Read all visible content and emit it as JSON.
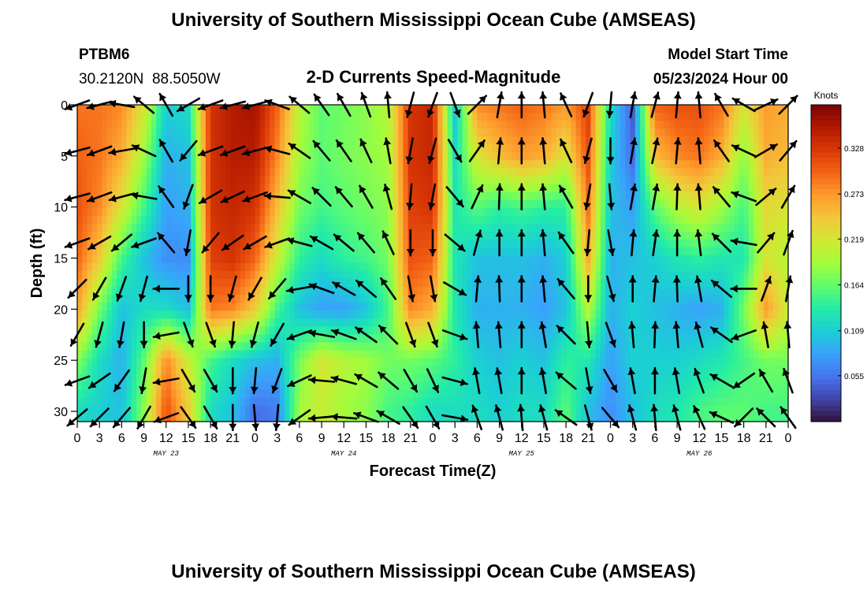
{
  "page": {
    "title": "University of Southern Mississippi Ocean Cube (AMSEAS)",
    "footer_title": "University of Southern Mississippi Ocean Cube (AMSEAS)",
    "station_name": "PTBM6",
    "station_coords": "30.2120N  88.5050W",
    "plot_title": "2-D Currents Speed-Magnitude",
    "model_start_label": "Model Start Time",
    "model_start_value": "05/23/2024 Hour 00"
  },
  "chart_data": {
    "type": "heatmap",
    "title": "2-D Currents Speed-Magnitude",
    "xlabel": "Forecast Time(Z)",
    "ylabel": "Depth (ft)",
    "x_tick_labels": [
      "0",
      "3",
      "6",
      "9",
      "12",
      "15",
      "18",
      "21",
      "0",
      "3",
      "6",
      "9",
      "12",
      "15",
      "18",
      "21",
      "0",
      "3",
      "6",
      "9",
      "12",
      "15",
      "18",
      "21",
      "0",
      "3",
      "6",
      "9",
      "12",
      "15",
      "18",
      "21",
      "0"
    ],
    "x_range_hours": [
      0,
      96
    ],
    "day_labels": [
      {
        "label": "MAY 23",
        "hour": 12
      },
      {
        "label": "MAY 24",
        "hour": 36
      },
      {
        "label": "MAY 25",
        "hour": 60
      },
      {
        "label": "MAY 26",
        "hour": 84
      }
    ],
    "y_tick_labels": [
      "0",
      "5",
      "10",
      "15",
      "20",
      "25",
      "30"
    ],
    "y_ticks": [
      0,
      5,
      10,
      15,
      20,
      25,
      30
    ],
    "y_range_ft": [
      0,
      31
    ],
    "y_inverted": true,
    "colorbar": {
      "unit": "Knots",
      "tick_labels": [
        "0.328",
        "0.273",
        "0.219",
        "0.164",
        "0.109",
        "0.055"
      ],
      "ticks": [
        0.328,
        0.273,
        0.219,
        0.164,
        0.109,
        0.055
      ],
      "range": [
        0.0,
        0.38
      ],
      "colormap": [
        "#30123b",
        "#4145ab",
        "#4675ed",
        "#39a2fc",
        "#1bcfd4",
        "#24eca6",
        "#61fc6c",
        "#a4fc3b",
        "#d1e834",
        "#f3c63a",
        "#fe9b2d",
        "#f36315",
        "#d93806",
        "#b11901",
        "#7a0402"
      ]
    },
    "speed_profiles_by_time": [
      {
        "hour": 0,
        "depth_ft": [
          0,
          5,
          10,
          15,
          20,
          25,
          30
        ],
        "knots": [
          0.29,
          0.3,
          0.31,
          0.3,
          0.27,
          0.18,
          0.12
        ]
      },
      {
        "hour": 3,
        "depth_ft": [
          0,
          5,
          10,
          15,
          20,
          25,
          30
        ],
        "knots": [
          0.29,
          0.29,
          0.28,
          0.24,
          0.17,
          0.12,
          0.11
        ]
      },
      {
        "hour": 6,
        "depth_ft": [
          0,
          5,
          10,
          15,
          20,
          25,
          30
        ],
        "knots": [
          0.28,
          0.26,
          0.22,
          0.15,
          0.1,
          0.09,
          0.1
        ]
      },
      {
        "hour": 9,
        "depth_ft": [
          0,
          5,
          10,
          15,
          20,
          25,
          30
        ],
        "knots": [
          0.22,
          0.19,
          0.15,
          0.1,
          0.12,
          0.16,
          0.18
        ]
      },
      {
        "hour": 12,
        "depth_ft": [
          0,
          5,
          10,
          15,
          20,
          25,
          30
        ],
        "knots": [
          0.11,
          0.09,
          0.08,
          0.07,
          0.12,
          0.28,
          0.31
        ]
      },
      {
        "hour": 15,
        "depth_ft": [
          0,
          5,
          10,
          15,
          20,
          25,
          30
        ],
        "knots": [
          0.12,
          0.1,
          0.09,
          0.07,
          0.1,
          0.21,
          0.24
        ]
      },
      {
        "hour": 18,
        "depth_ft": [
          0,
          5,
          10,
          15,
          20,
          25,
          30
        ],
        "knots": [
          0.33,
          0.33,
          0.33,
          0.32,
          0.29,
          0.15,
          0.12
        ]
      },
      {
        "hour": 21,
        "depth_ft": [
          0,
          5,
          10,
          15,
          20,
          25,
          30
        ],
        "knots": [
          0.35,
          0.35,
          0.34,
          0.33,
          0.28,
          0.12,
          0.1
        ]
      },
      {
        "hour": 24,
        "depth_ft": [
          0,
          5,
          10,
          15,
          20,
          25,
          30
        ],
        "knots": [
          0.36,
          0.35,
          0.33,
          0.3,
          0.24,
          0.1,
          0.05
        ]
      },
      {
        "hour": 27,
        "depth_ft": [
          0,
          5,
          10,
          15,
          20,
          25,
          30
        ],
        "knots": [
          0.3,
          0.28,
          0.25,
          0.21,
          0.15,
          0.09,
          0.06
        ]
      },
      {
        "hour": 30,
        "depth_ft": [
          0,
          5,
          10,
          15,
          20,
          25,
          30
        ],
        "knots": [
          0.2,
          0.19,
          0.17,
          0.14,
          0.1,
          0.17,
          0.19
        ]
      },
      {
        "hour": 33,
        "depth_ft": [
          0,
          5,
          10,
          15,
          20,
          25,
          30
        ],
        "knots": [
          0.16,
          0.16,
          0.15,
          0.12,
          0.08,
          0.22,
          0.21
        ]
      },
      {
        "hour": 36,
        "depth_ft": [
          0,
          5,
          10,
          15,
          20,
          25,
          30
        ],
        "knots": [
          0.17,
          0.17,
          0.16,
          0.14,
          0.08,
          0.2,
          0.19
        ]
      },
      {
        "hour": 39,
        "depth_ft": [
          0,
          5,
          10,
          15,
          20,
          25,
          30
        ],
        "knots": [
          0.18,
          0.18,
          0.17,
          0.15,
          0.1,
          0.19,
          0.18
        ]
      },
      {
        "hour": 42,
        "depth_ft": [
          0,
          5,
          10,
          15,
          20,
          25,
          30
        ],
        "knots": [
          0.2,
          0.19,
          0.18,
          0.17,
          0.15,
          0.17,
          0.15
        ]
      },
      {
        "hour": 45,
        "depth_ft": [
          0,
          5,
          10,
          15,
          20,
          25,
          30
        ],
        "knots": [
          0.33,
          0.33,
          0.32,
          0.31,
          0.28,
          0.17,
          0.14
        ]
      },
      {
        "hour": 48,
        "depth_ft": [
          0,
          5,
          10,
          15,
          20,
          25,
          30
        ],
        "knots": [
          0.34,
          0.34,
          0.33,
          0.3,
          0.26,
          0.16,
          0.12
        ]
      },
      {
        "hour": 51,
        "depth_ft": [
          0,
          5,
          10,
          15,
          20,
          25,
          30
        ],
        "knots": [
          0.1,
          0.12,
          0.13,
          0.13,
          0.13,
          0.14,
          0.12
        ]
      },
      {
        "hour": 54,
        "depth_ft": [
          0,
          5,
          10,
          15,
          20,
          25,
          30
        ],
        "knots": [
          0.28,
          0.22,
          0.16,
          0.1,
          0.09,
          0.11,
          0.12
        ]
      },
      {
        "hour": 57,
        "depth_ft": [
          0,
          5,
          10,
          15,
          20,
          25,
          30
        ],
        "knots": [
          0.29,
          0.25,
          0.14,
          0.1,
          0.09,
          0.1,
          0.11
        ]
      },
      {
        "hour": 60,
        "depth_ft": [
          0,
          5,
          10,
          15,
          20,
          25,
          30
        ],
        "knots": [
          0.3,
          0.27,
          0.15,
          0.1,
          0.09,
          0.11,
          0.12
        ]
      },
      {
        "hour": 63,
        "depth_ft": [
          0,
          5,
          10,
          15,
          20,
          25,
          30
        ],
        "knots": [
          0.29,
          0.26,
          0.14,
          0.09,
          0.08,
          0.1,
          0.12
        ]
      },
      {
        "hour": 66,
        "depth_ft": [
          0,
          5,
          10,
          15,
          20,
          25,
          30
        ],
        "knots": [
          0.27,
          0.22,
          0.14,
          0.11,
          0.1,
          0.14,
          0.16
        ]
      },
      {
        "hour": 69,
        "depth_ft": [
          0,
          5,
          10,
          15,
          20,
          25,
          30
        ],
        "knots": [
          0.32,
          0.31,
          0.29,
          0.26,
          0.2,
          0.13,
          0.1
        ]
      },
      {
        "hour": 72,
        "depth_ft": [
          0,
          5,
          10,
          15,
          20,
          25,
          30
        ],
        "knots": [
          0.12,
          0.11,
          0.1,
          0.09,
          0.09,
          0.08,
          0.07
        ]
      },
      {
        "hour": 75,
        "depth_ft": [
          0,
          5,
          10,
          15,
          20,
          25,
          30
        ],
        "knots": [
          0.04,
          0.05,
          0.08,
          0.1,
          0.11,
          0.11,
          0.1
        ]
      },
      {
        "hour": 78,
        "depth_ft": [
          0,
          5,
          10,
          15,
          20,
          25,
          30
        ],
        "knots": [
          0.3,
          0.25,
          0.16,
          0.11,
          0.1,
          0.11,
          0.12
        ]
      },
      {
        "hour": 81,
        "depth_ft": [
          0,
          5,
          10,
          15,
          20,
          25,
          30
        ],
        "knots": [
          0.31,
          0.28,
          0.2,
          0.13,
          0.09,
          0.11,
          0.13
        ]
      },
      {
        "hour": 84,
        "depth_ft": [
          0,
          5,
          10,
          15,
          20,
          25,
          30
        ],
        "knots": [
          0.31,
          0.29,
          0.22,
          0.14,
          0.08,
          0.12,
          0.15
        ]
      },
      {
        "hour": 87,
        "depth_ft": [
          0,
          5,
          10,
          15,
          20,
          25,
          30
        ],
        "knots": [
          0.29,
          0.26,
          0.19,
          0.13,
          0.09,
          0.13,
          0.16
        ]
      },
      {
        "hour": 90,
        "depth_ft": [
          0,
          5,
          10,
          15,
          20,
          25,
          30
        ],
        "knots": [
          0.22,
          0.18,
          0.15,
          0.13,
          0.17,
          0.15,
          0.16
        ]
      },
      {
        "hour": 93,
        "depth_ft": [
          0,
          5,
          10,
          15,
          20,
          25,
          30
        ],
        "knots": [
          0.27,
          0.26,
          0.23,
          0.22,
          0.27,
          0.17,
          0.15
        ]
      },
      {
        "hour": 96,
        "depth_ft": [
          0,
          5,
          10,
          15,
          20,
          25,
          30
        ],
        "knots": [
          0.26,
          0.25,
          0.22,
          0.2,
          0.21,
          0.17,
          0.15
        ]
      }
    ],
    "vector_depths_ft": [
      0,
      4.5,
      9,
      13.5,
      18,
      22.5,
      27,
      31
    ],
    "vector_columns_hours": [
      0,
      3,
      6,
      9,
      12,
      15,
      18,
      21,
      24,
      27,
      30,
      33,
      36,
      39,
      42,
      45,
      48,
      51,
      54,
      57,
      60,
      63,
      66,
      69,
      72,
      75,
      78,
      81,
      84,
      87,
      90,
      93,
      96
    ],
    "vector_direction_deg_math": [
      {
        "hour": 0,
        "deg": [
          200,
          195,
          195,
          200,
          225,
          240,
          200,
          220
        ]
      },
      {
        "hour": 3,
        "deg": [
          195,
          200,
          200,
          210,
          240,
          255,
          215,
          225
        ]
      },
      {
        "hour": 6,
        "deg": [
          170,
          190,
          195,
          220,
          250,
          260,
          235,
          230
        ]
      },
      {
        "hour": 9,
        "deg": [
          140,
          155,
          170,
          200,
          255,
          270,
          260,
          240
        ]
      },
      {
        "hour": 12,
        "deg": [
          120,
          120,
          125,
          130,
          180,
          190,
          190,
          200
        ]
      },
      {
        "hour": 15,
        "deg": [
          210,
          230,
          250,
          260,
          270,
          290,
          300,
          305
        ]
      },
      {
        "hour": 18,
        "deg": [
          200,
          200,
          210,
          230,
          270,
          290,
          300,
          300
        ]
      },
      {
        "hour": 21,
        "deg": [
          195,
          200,
          205,
          215,
          255,
          265,
          270,
          270
        ]
      },
      {
        "hour": 24,
        "deg": [
          195,
          195,
          200,
          210,
          240,
          255,
          265,
          275
        ]
      },
      {
        "hour": 27,
        "deg": [
          160,
          165,
          175,
          200,
          230,
          240,
          250,
          265
        ]
      },
      {
        "hour": 30,
        "deg": [
          140,
          145,
          150,
          165,
          190,
          200,
          205,
          215
        ]
      },
      {
        "hour": 33,
        "deg": [
          125,
          130,
          135,
          150,
          160,
          170,
          175,
          185
        ]
      },
      {
        "hour": 36,
        "deg": [
          120,
          125,
          130,
          140,
          150,
          160,
          165,
          175
        ]
      },
      {
        "hour": 39,
        "deg": [
          110,
          115,
          120,
          130,
          140,
          145,
          150,
          160
        ]
      },
      {
        "hour": 42,
        "deg": [
          95,
          100,
          105,
          115,
          125,
          135,
          140,
          150
        ]
      },
      {
        "hour": 45,
        "deg": [
          255,
          260,
          265,
          270,
          280,
          290,
          300,
          305
        ]
      },
      {
        "hour": 48,
        "deg": [
          250,
          255,
          260,
          270,
          280,
          290,
          295,
          300
        ]
      },
      {
        "hour": 51,
        "deg": [
          290,
          300,
          310,
          320,
          330,
          340,
          345,
          350
        ]
      },
      {
        "hour": 54,
        "deg": [
          45,
          55,
          65,
          75,
          85,
          95,
          100,
          110
        ]
      },
      {
        "hour": 57,
        "deg": [
          80,
          85,
          88,
          90,
          92,
          95,
          100,
          105
        ]
      },
      {
        "hour": 60,
        "deg": [
          90,
          90,
          90,
          90,
          90,
          90,
          90,
          95
        ]
      },
      {
        "hour": 63,
        "deg": [
          95,
          95,
          95,
          95,
          95,
          100,
          100,
          105
        ]
      },
      {
        "hour": 66,
        "deg": [
          115,
          115,
          120,
          125,
          130,
          135,
          140,
          145
        ]
      },
      {
        "hour": 69,
        "deg": [
          250,
          255,
          260,
          265,
          270,
          275,
          280,
          285
        ]
      },
      {
        "hour": 72,
        "deg": [
          265,
          270,
          275,
          280,
          285,
          290,
          300,
          310
        ]
      },
      {
        "hour": 75,
        "deg": [
          80,
          80,
          80,
          85,
          90,
          95,
          100,
          105
        ]
      },
      {
        "hour": 78,
        "deg": [
          75,
          78,
          80,
          82,
          85,
          88,
          90,
          95
        ]
      },
      {
        "hour": 81,
        "deg": [
          85,
          85,
          88,
          90,
          92,
          95,
          100,
          105
        ]
      },
      {
        "hour": 84,
        "deg": [
          95,
          95,
          95,
          97,
          100,
          105,
          110,
          115
        ]
      },
      {
        "hour": 87,
        "deg": [
          120,
          125,
          130,
          135,
          140,
          145,
          150,
          155
        ]
      },
      {
        "hour": 90,
        "deg": [
          150,
          155,
          160,
          170,
          180,
          200,
          215,
          225
        ]
      },
      {
        "hour": 93,
        "deg": [
          25,
          30,
          40,
          50,
          70,
          100,
          120,
          135
        ]
      },
      {
        "hour": 96,
        "deg": [
          45,
          50,
          60,
          70,
          80,
          95,
          110,
          125
        ]
      }
    ]
  }
}
